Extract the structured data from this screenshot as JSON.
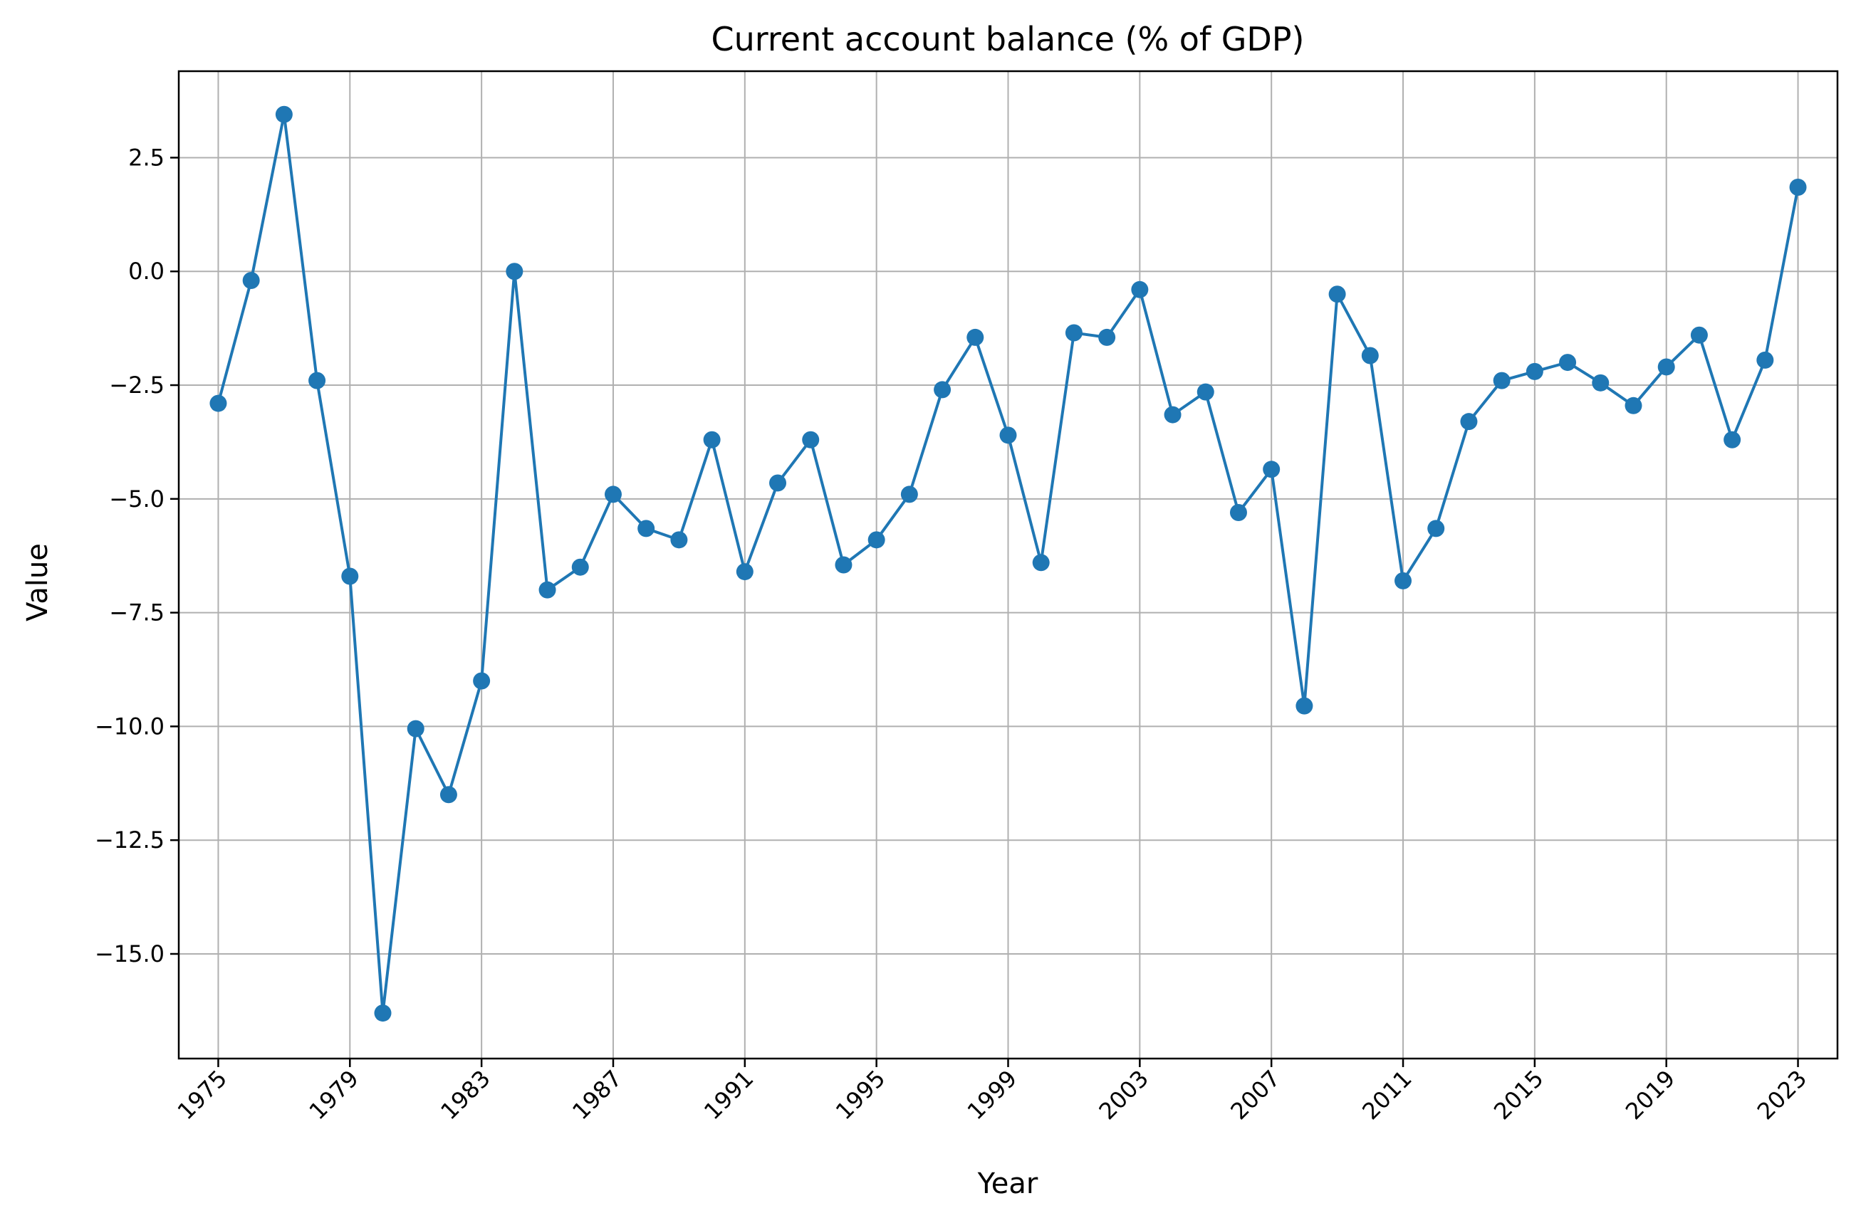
{
  "chart_data": {
    "type": "line",
    "title": "Current account balance (% of GDP)",
    "xlabel": "Year",
    "ylabel": "Value",
    "x": [
      1975,
      1976,
      1977,
      1978,
      1979,
      1980,
      1981,
      1982,
      1983,
      1984,
      1985,
      1986,
      1987,
      1988,
      1989,
      1990,
      1991,
      1992,
      1993,
      1994,
      1995,
      1996,
      1997,
      1998,
      1999,
      2000,
      2001,
      2002,
      2003,
      2004,
      2005,
      2006,
      2007,
      2008,
      2009,
      2010,
      2011,
      2012,
      2013,
      2014,
      2015,
      2016,
      2017,
      2018,
      2019,
      2020,
      2021,
      2022,
      2023
    ],
    "series": [
      {
        "values": [
          -2.9,
          -0.2,
          3.45,
          -2.4,
          -6.7,
          -16.3,
          -10.05,
          -11.5,
          -9.0,
          0.0,
          -7.0,
          -6.5,
          -4.9,
          -5.65,
          -5.9,
          -3.7,
          -6.6,
          -4.65,
          -3.7,
          -6.45,
          -5.9,
          -4.9,
          -2.6,
          -1.45,
          -3.6,
          -6.4,
          -1.35,
          -1.45,
          -0.4,
          -3.15,
          -2.65,
          -5.3,
          -4.35,
          -9.55,
          -0.5,
          -1.85,
          -6.8,
          -5.65,
          -3.3,
          -2.4,
          -2.2,
          -2.0,
          -2.45,
          -2.95,
          -2.1,
          -1.4,
          -3.7,
          -1.95,
          1.85
        ],
        "color": "#1f77b4"
      }
    ],
    "xticks": [
      1975,
      1979,
      1983,
      1987,
      1991,
      1995,
      1999,
      2003,
      2007,
      2011,
      2015,
      2019,
      2023
    ],
    "yticks": [
      2.5,
      0.0,
      -2.5,
      -5.0,
      -7.5,
      -10.0,
      -12.5,
      -15.0
    ],
    "ytick_labels": [
      "2.5",
      "0.0",
      "−2.5",
      "−5.0",
      "−7.5",
      "−10.0",
      "−12.5",
      "−15.0"
    ],
    "xlim": [
      1973.8,
      2024.2
    ],
    "ylim": [
      -17.3,
      4.4
    ],
    "grid": true,
    "marker": "circle"
  }
}
